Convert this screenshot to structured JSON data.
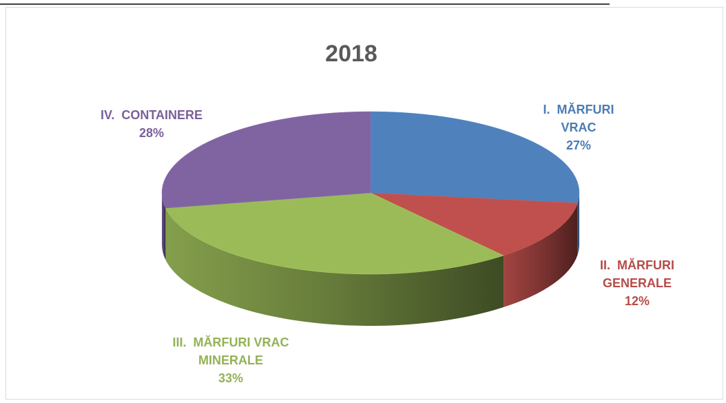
{
  "chart_data": {
    "type": "pie",
    "title": "2018",
    "categories": [
      "I.  MĂRFURI VRAC",
      "II.  MĂRFURI GENERALE",
      "III.  MĂRFURI VRAC MINERALE",
      "IV.  CONTAINERE"
    ],
    "values": [
      27,
      12,
      33,
      28
    ],
    "value_labels": [
      "27%",
      "12%",
      "33%",
      "28%"
    ],
    "colors": [
      "#4f81bd",
      "#c0504d",
      "#9bbb59",
      "#8064a2"
    ]
  }
}
